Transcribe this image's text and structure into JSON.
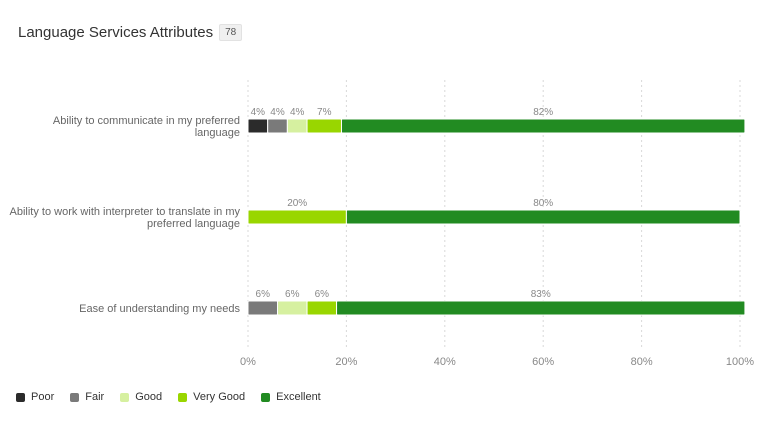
{
  "header": {
    "title": "Language Services Attributes",
    "count": "78"
  },
  "chart_data": {
    "type": "bar",
    "orientation": "horizontal",
    "stacked": true,
    "categories": [
      [
        "Ability to communicate in my preferred",
        "language"
      ],
      [
        "Ability to work with interpreter to translate in my",
        "preferred language"
      ],
      [
        "Ease of understanding my needs"
      ]
    ],
    "series": [
      {
        "name": "Poor",
        "color": "#2b2b2b",
        "values": [
          4,
          0,
          0
        ]
      },
      {
        "name": "Fair",
        "color": "#7a7a7a",
        "values": [
          4,
          0,
          6
        ]
      },
      {
        "name": "Good",
        "color": "#d6f0a0",
        "values": [
          4,
          0,
          6
        ]
      },
      {
        "name": "Very Good",
        "color": "#99d600",
        "values": [
          7,
          20,
          6
        ]
      },
      {
        "name": "Excellent",
        "color": "#228b22",
        "values": [
          82,
          80,
          83
        ]
      }
    ],
    "data_labels": [
      [
        "4%",
        "4%",
        "4%",
        "7%",
        "82%"
      ],
      [
        "",
        "",
        "",
        "20%",
        "80%"
      ],
      [
        "",
        "6%",
        "6%",
        "6%",
        "83%"
      ]
    ],
    "xlim": [
      0,
      100
    ],
    "ticks": [
      "0%",
      "20%",
      "40%",
      "60%",
      "80%",
      "100%"
    ],
    "grid": true,
    "legend_position": "bottom-left"
  }
}
